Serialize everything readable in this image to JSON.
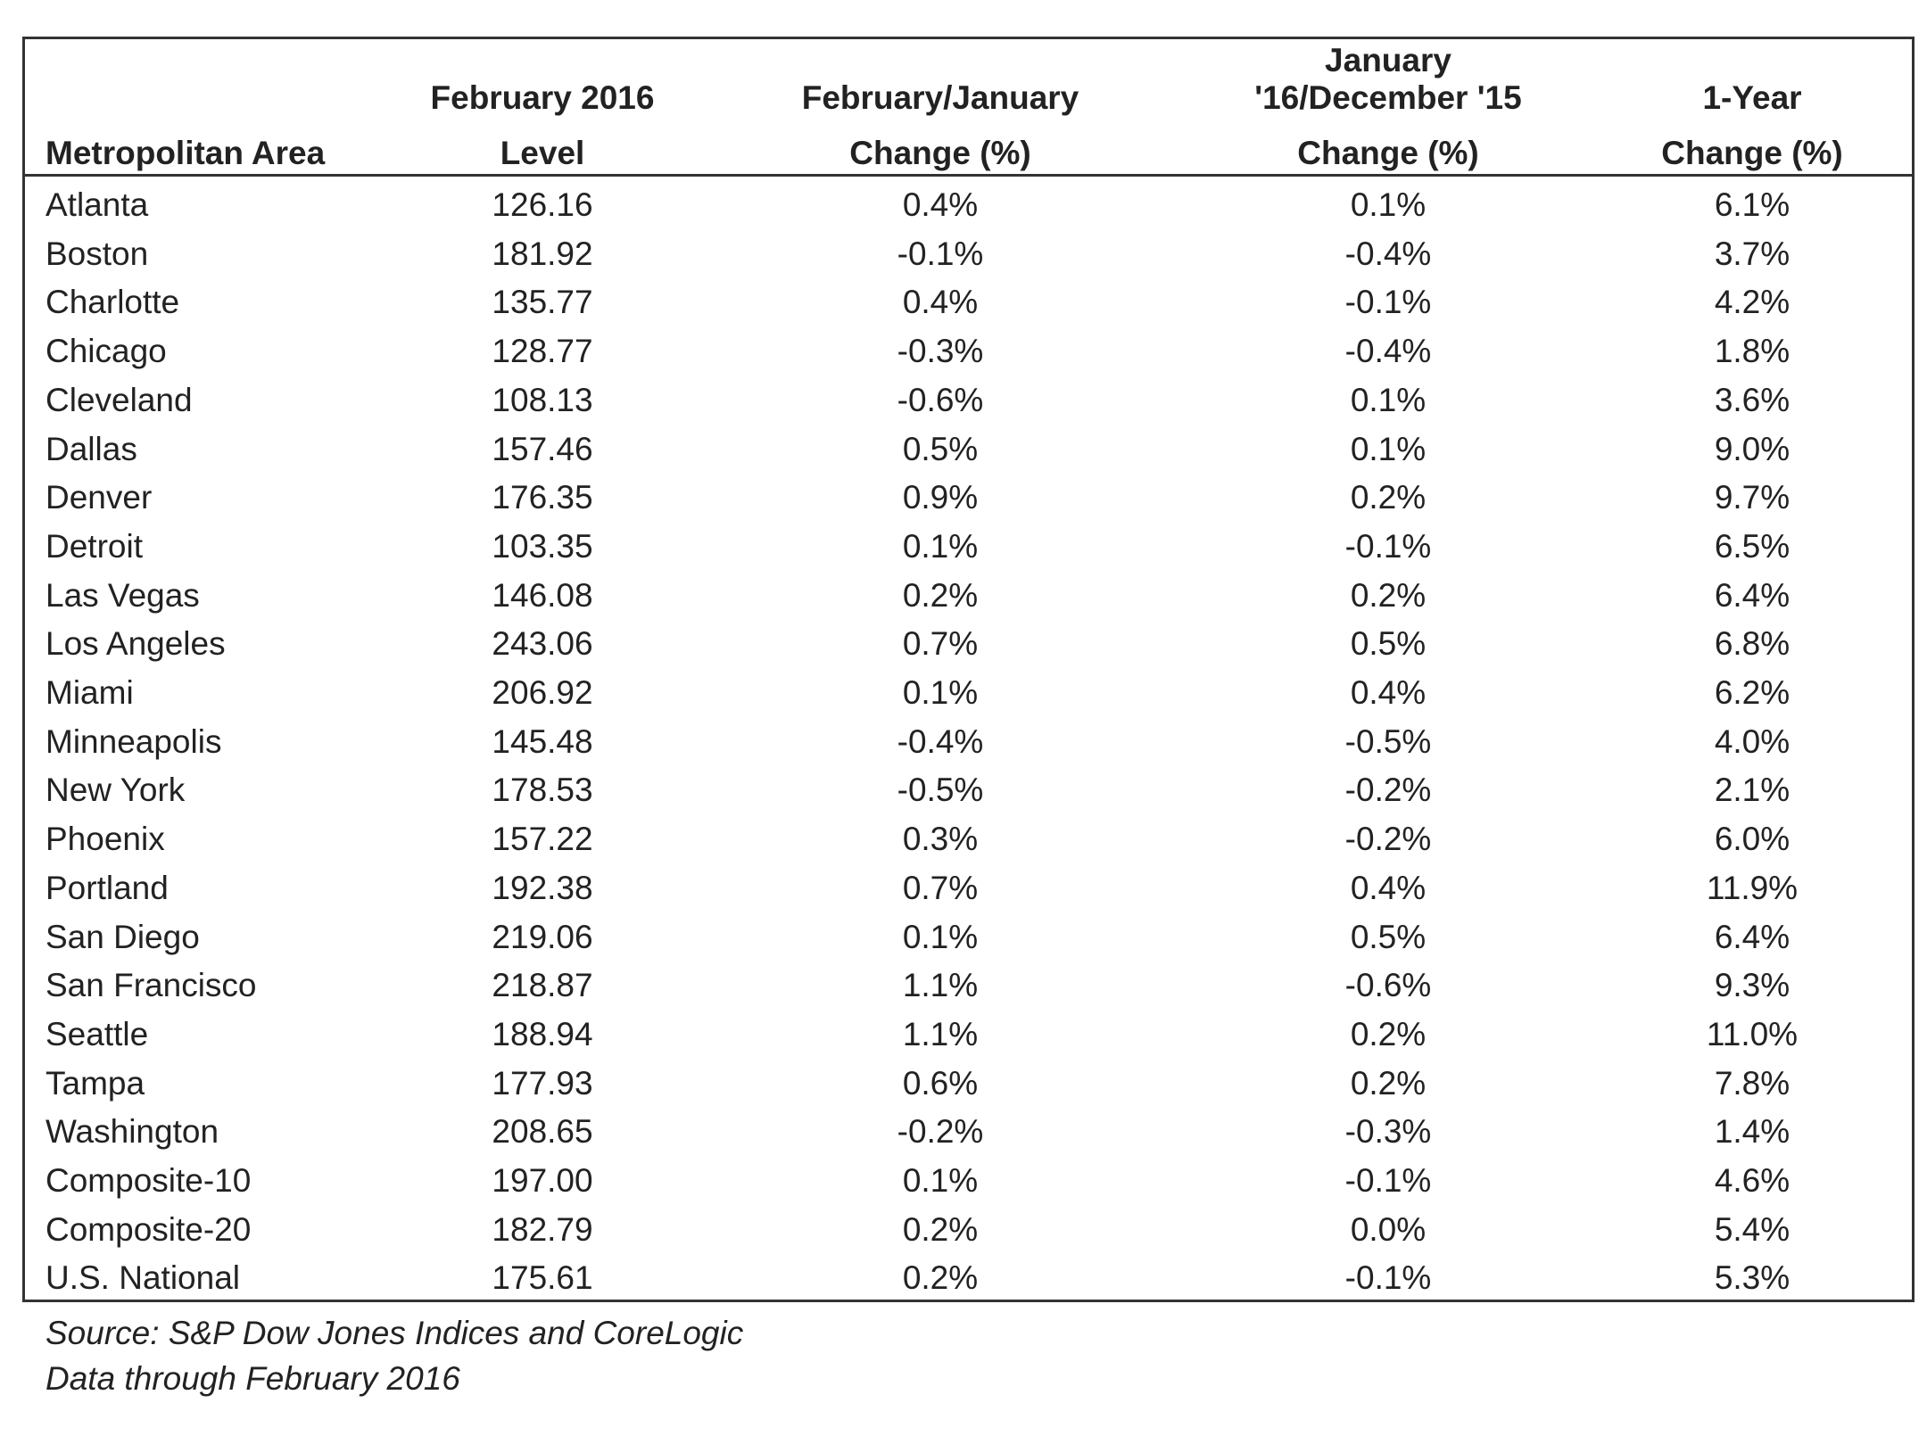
{
  "table": {
    "header": [
      [
        "Metropolitan Area"
      ],
      [
        "February 2016",
        "Level"
      ],
      [
        "February/January",
        "Change (%)"
      ],
      [
        "January",
        "'16/December '15",
        "Change (%)"
      ],
      [
        "1-Year",
        "Change (%)"
      ]
    ],
    "rows": [
      [
        "Atlanta",
        "126.16",
        "0.4%",
        "0.1%",
        "6.1%"
      ],
      [
        "Boston",
        "181.92",
        "-0.1%",
        "-0.4%",
        "3.7%"
      ],
      [
        "Charlotte",
        "135.77",
        "0.4%",
        "-0.1%",
        "4.2%"
      ],
      [
        "Chicago",
        "128.77",
        "-0.3%",
        "-0.4%",
        "1.8%"
      ],
      [
        "Cleveland",
        "108.13",
        "-0.6%",
        "0.1%",
        "3.6%"
      ],
      [
        "Dallas",
        "157.46",
        "0.5%",
        "0.1%",
        "9.0%"
      ],
      [
        "Denver",
        "176.35",
        "0.9%",
        "0.2%",
        "9.7%"
      ],
      [
        "Detroit",
        "103.35",
        "0.1%",
        "-0.1%",
        "6.5%"
      ],
      [
        "Las Vegas",
        "146.08",
        "0.2%",
        "0.2%",
        "6.4%"
      ],
      [
        "Los Angeles",
        "243.06",
        "0.7%",
        "0.5%",
        "6.8%"
      ],
      [
        "Miami",
        "206.92",
        "0.1%",
        "0.4%",
        "6.2%"
      ],
      [
        "Minneapolis",
        "145.48",
        "-0.4%",
        "-0.5%",
        "4.0%"
      ],
      [
        "New York",
        "178.53",
        "-0.5%",
        "-0.2%",
        "2.1%"
      ],
      [
        "Phoenix",
        "157.22",
        "0.3%",
        "-0.2%",
        "6.0%"
      ],
      [
        "Portland",
        "192.38",
        "0.7%",
        "0.4%",
        "11.9%"
      ],
      [
        "San Diego",
        "219.06",
        "0.1%",
        "0.5%",
        "6.4%"
      ],
      [
        "San Francisco",
        "218.87",
        "1.1%",
        "-0.6%",
        "9.3%"
      ],
      [
        "Seattle",
        "188.94",
        "1.1%",
        "0.2%",
        "11.0%"
      ],
      [
        "Tampa",
        "177.93",
        "0.6%",
        "0.2%",
        "7.8%"
      ],
      [
        "Washington",
        "208.65",
        "-0.2%",
        "-0.3%",
        "1.4%"
      ],
      [
        "Composite-10",
        "197.00",
        "0.1%",
        "-0.1%",
        "4.6%"
      ],
      [
        "Composite-20",
        "182.79",
        "0.2%",
        "0.0%",
        "5.4%"
      ],
      [
        "U.S. National",
        "175.61",
        "0.2%",
        "-0.1%",
        "5.3%"
      ]
    ]
  },
  "footer": [
    "Source: S&P Dow Jones Indices and CoreLogic",
    "Data through February 2016"
  ]
}
